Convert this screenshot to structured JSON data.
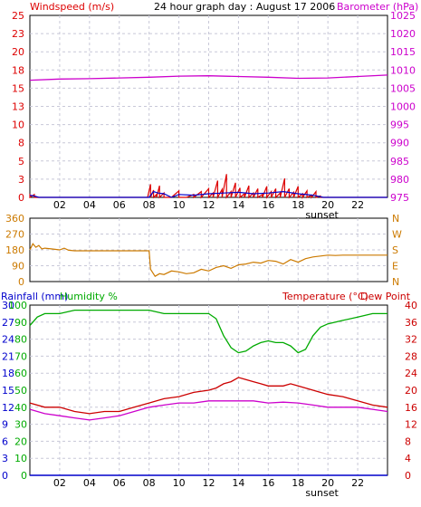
{
  "header": {
    "title": "24 hour graph day : August 17 2006",
    "left_label": "Windspeed (m/s)",
    "right_label": "Barometer (hPa)"
  },
  "colors": {
    "wind": "#dd0000",
    "gust": "#0000cc",
    "barometer": "#cc00cc",
    "direction": "#cc7a00",
    "humidity": "#00aa00",
    "temperature": "#cc0000",
    "dewpoint": "#cc00cc",
    "rainfall": "#0000cc",
    "grid": "#c8c8d8",
    "frame": "#000000"
  },
  "chart_data": [
    {
      "type": "line",
      "name_ref": "windspeed-barometer",
      "x_ticks": [
        "02",
        "04",
        "06",
        "08",
        "10",
        "12",
        "14",
        "16",
        "18",
        "20",
        "22"
      ],
      "x_extra_label": "sunset",
      "x_range_hours": [
        0,
        24
      ],
      "y_left_ticks": [
        "25",
        "23",
        "20",
        "18",
        "15",
        "13",
        "10",
        "8",
        "5",
        "3",
        "0"
      ],
      "y_left_range": [
        0,
        25
      ],
      "y_right_ticks": [
        "1025",
        "1020",
        "1015",
        "1010",
        "1005",
        "1000",
        "995",
        "990",
        "985",
        "980",
        "975"
      ],
      "y_right_range": [
        975,
        1025
      ],
      "series": [
        {
          "name": "Barometer",
          "axis": "right",
          "x": [
            0,
            2,
            4,
            6,
            8,
            10,
            12,
            14,
            16,
            18,
            20,
            22,
            24
          ],
          "values": [
            1007.2,
            1007.5,
            1007.6,
            1007.8,
            1008.0,
            1008.3,
            1008.4,
            1008.2,
            1008.0,
            1007.7,
            1007.8,
            1008.2,
            1008.6
          ]
        },
        {
          "name": "Wind",
          "axis": "left",
          "x": [
            0,
            0.3,
            0.6,
            1,
            7.9,
            8.1,
            8.3,
            8.5,
            8.7,
            9,
            9.5,
            10,
            10.5,
            11,
            11.5,
            12,
            12.3,
            12.6,
            12.9,
            13.2,
            13.5,
            13.8,
            14.1,
            14.4,
            14.7,
            15,
            15.3,
            15.6,
            15.9,
            16.2,
            16.5,
            16.8,
            17.1,
            17.4,
            17.7,
            18,
            18.3,
            18.6,
            18.9,
            19.2,
            19.5,
            19.7,
            24
          ],
          "values": [
            0.5,
            0.4,
            0,
            0,
            0,
            1.8,
            1,
            0.4,
            1.6,
            0.6,
            0,
            0.9,
            0,
            0.4,
            0.8,
            1.2,
            0.6,
            2.3,
            1.1,
            3.2,
            0.8,
            2,
            1.3,
            0.5,
            1.6,
            0.6,
            1.2,
            0.4,
            1.5,
            0.8,
            1.2,
            0.6,
            2.6,
            1.2,
            0.7,
            1.5,
            0.5,
            0.9,
            0.3,
            0.8,
            0.2,
            0,
            0
          ]
        },
        {
          "name": "Gust",
          "axis": "left",
          "x": [
            0,
            0.3,
            0.6,
            1,
            8,
            8.3,
            8.6,
            9,
            9.5,
            10,
            11,
            12,
            13,
            14,
            15,
            16,
            17,
            18,
            19,
            19.7,
            24
          ],
          "values": [
            0.3,
            0.2,
            0,
            0,
            0,
            0.8,
            0.6,
            0.5,
            0,
            0.4,
            0.3,
            0.5,
            0.6,
            0.7,
            0.5,
            0.6,
            0.8,
            0.5,
            0.3,
            0,
            0
          ]
        }
      ]
    },
    {
      "type": "line",
      "name_ref": "wind-direction",
      "x_ticks": [],
      "y_left_ticks": [
        "360",
        "270",
        "180",
        "90",
        "0"
      ],
      "y_left_range": [
        0,
        360
      ],
      "y_right_ticks": [
        "N",
        "W",
        "S",
        "E",
        "N"
      ],
      "series": [
        {
          "name": "Direction",
          "x": [
            0,
            0.2,
            0.4,
            0.6,
            0.8,
            1,
            1.5,
            2,
            2.3,
            2.6,
            3,
            4,
            5,
            6,
            7,
            8,
            8.1,
            8.4,
            8.7,
            9,
            9.5,
            10,
            10.5,
            11,
            11.5,
            12,
            12.5,
            13,
            13.5,
            14,
            14.5,
            15,
            15.5,
            16,
            16.5,
            17,
            17.5,
            18,
            18.5,
            19,
            19.5,
            20,
            20.5,
            21,
            22,
            23,
            24
          ],
          "values": [
            180,
            215,
            195,
            205,
            185,
            190,
            185,
            180,
            190,
            178,
            175,
            175,
            175,
            175,
            175,
            175,
            70,
            30,
            45,
            40,
            60,
            55,
            45,
            50,
            70,
            60,
            80,
            90,
            75,
            95,
            100,
            110,
            105,
            120,
            115,
            100,
            125,
            110,
            130,
            140,
            145,
            150,
            148,
            150,
            150,
            150,
            150
          ]
        }
      ]
    },
    {
      "type": "line",
      "name_ref": "temperature-humidity",
      "x_ticks": [
        "02",
        "04",
        "06",
        "08",
        "10",
        "12",
        "14",
        "16",
        "18",
        "20",
        "22"
      ],
      "x_extra_label": "sunset",
      "title_rainfall": "Rainfall (mm)",
      "title_humidity": "Humidity %",
      "title_temperature": "Temperature (°C)",
      "title_dewpoint": "Dew Point",
      "y_left_outer_ticks": [
        "30",
        "27",
        "24",
        "21",
        "18",
        "15",
        "12",
        "9",
        "6",
        "3",
        "0"
      ],
      "y_left_inner_ticks": [
        "100",
        "90",
        "80",
        "70",
        "60",
        "50",
        "40",
        "30",
        "20",
        "10",
        "0"
      ],
      "y_right_ticks": [
        "40",
        "36",
        "32",
        "28",
        "24",
        "20",
        "16",
        "12",
        "8",
        "4",
        "0"
      ],
      "y_temp_range": [
        0,
        40
      ],
      "y_humidity_range": [
        0,
        100
      ],
      "y_rain_range": [
        0,
        30
      ],
      "series": [
        {
          "name": "Humidity",
          "x": [
            0,
            0.5,
            1,
            2,
            3,
            4,
            5,
            6,
            7,
            8,
            9,
            10,
            11,
            12,
            12.5,
            13,
            13.5,
            14,
            14.5,
            15,
            15.5,
            16,
            16.5,
            17,
            17.5,
            18,
            18.5,
            19,
            19.5,
            20,
            21,
            22,
            23,
            24
          ],
          "values": [
            88,
            93,
            95,
            95,
            97,
            97,
            97,
            97,
            97,
            97,
            95,
            95,
            95,
            95,
            92,
            82,
            75,
            72,
            73,
            76,
            78,
            79,
            78,
            78,
            76,
            72,
            74,
            82,
            87,
            89,
            91,
            93,
            95,
            95
          ]
        },
        {
          "name": "Temperature",
          "x": [
            0,
            1,
            2,
            3,
            4,
            5,
            6,
            7,
            8,
            9,
            10,
            11,
            12,
            12.5,
            13,
            13.5,
            14,
            14.5,
            15,
            15.5,
            16,
            16.5,
            17,
            17.5,
            18,
            18.5,
            19,
            19.5,
            20,
            21,
            22,
            23,
            24
          ],
          "values": [
            17,
            16,
            16,
            15,
            14.5,
            15,
            15,
            16,
            17,
            18,
            18.5,
            19.5,
            20,
            20.5,
            21.5,
            22,
            23,
            22.5,
            22,
            21.5,
            21,
            21,
            21,
            21.5,
            21,
            20.5,
            20,
            19.5,
            19,
            18.5,
            17.5,
            16.5,
            16
          ]
        },
        {
          "name": "Dew Point",
          "x": [
            0,
            1,
            2,
            3,
            4,
            5,
            6,
            7,
            8,
            9,
            10,
            11,
            12,
            13,
            14,
            15,
            16,
            17,
            18,
            19,
            20,
            21,
            22,
            23,
            24
          ],
          "values": [
            15.5,
            14.5,
            14,
            13.5,
            13,
            13.5,
            14,
            15,
            16,
            16.5,
            17,
            17,
            17.5,
            17.5,
            17.5,
            17.5,
            17,
            17.2,
            17,
            16.5,
            16,
            16,
            16,
            15.5,
            15
          ]
        },
        {
          "name": "Rainfall",
          "x": [
            0,
            24
          ],
          "values": [
            0,
            0
          ]
        }
      ]
    }
  ]
}
